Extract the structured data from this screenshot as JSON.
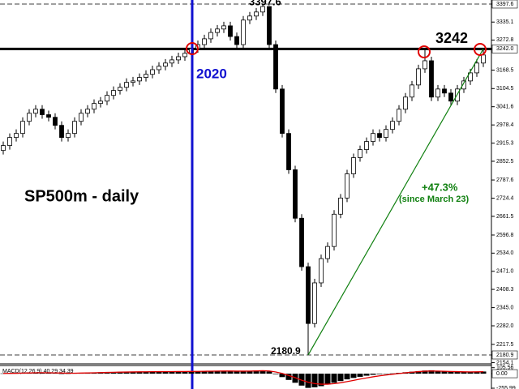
{
  "chart_data": {
    "type": "candlestick",
    "title": "SP500m - daily",
    "up_color": "#ffffff",
    "down_color": "#000000",
    "open": [
      2890,
      2907,
      2935,
      2949,
      2991,
      3019,
      3033,
      3014,
      3005,
      2977,
      2935,
      2949,
      2991,
      3019,
      3033,
      3053,
      3061,
      3081,
      3098,
      3109,
      3126,
      3131,
      3143,
      3154,
      3170,
      3182,
      3193,
      3204,
      3215,
      3227,
      3243,
      3257,
      3277,
      3299,
      3311,
      3322,
      3285,
      3257,
      3342,
      3356,
      3370,
      3389,
      3257,
      3103,
      2949,
      2823,
      2655,
      2487,
      2290,
      2431,
      2515,
      2557,
      2669,
      2725,
      2809,
      2865,
      2893,
      2921,
      2949,
      2935,
      2963,
      2991,
      3033,
      3075,
      3117,
      3173,
      3201,
      3075,
      3103,
      3089,
      3061,
      3103,
      3131,
      3159,
      3193
    ],
    "high": [
      2921,
      2949,
      2963,
      3005,
      3033,
      3047,
      3047,
      3028,
      3019,
      2991,
      2963,
      3005,
      3033,
      3047,
      3067,
      3075,
      3095,
      3112,
      3123,
      3140,
      3145,
      3157,
      3168,
      3184,
      3196,
      3207,
      3218,
      3229,
      3241,
      3257,
      3271,
      3291,
      3313,
      3325,
      3336,
      3336,
      3299,
      3356,
      3370,
      3384,
      3397.6,
      3390,
      3271,
      3117,
      2963,
      2837,
      2669,
      2501,
      2445,
      2529,
      2571,
      2683,
      2739,
      2823,
      2879,
      2907,
      2935,
      2963,
      2963,
      2977,
      3005,
      3047,
      3089,
      3131,
      3187,
      3242,
      3215,
      3117,
      3117,
      3103,
      3117,
      3145,
      3173,
      3207,
      3242
    ],
    "low": [
      2876,
      2893,
      2921,
      2935,
      2977,
      3005,
      3000,
      2991,
      2963,
      2921,
      2921,
      2935,
      2977,
      3005,
      3019,
      3039,
      3047,
      3067,
      3084,
      3095,
      3112,
      3117,
      3129,
      3140,
      3156,
      3168,
      3179,
      3190,
      3201,
      3213,
      3229,
      3243,
      3263,
      3285,
      3297,
      3271,
      3243,
      3243,
      3328,
      3342,
      3356,
      3243,
      3089,
      2935,
      2809,
      2641,
      2473,
      2180.9,
      2276,
      2417,
      2501,
      2543,
      2655,
      2711,
      2795,
      2851,
      2879,
      2907,
      2921,
      2921,
      2949,
      2977,
      3019,
      3061,
      3103,
      3159,
      3061,
      3061,
      3075,
      3047,
      3047,
      3089,
      3117,
      3145,
      3179
    ],
    "close": [
      2907,
      2935,
      2949,
      2991,
      3019,
      3033,
      3014,
      3005,
      2977,
      2935,
      2949,
      2991,
      3019,
      3033,
      3053,
      3061,
      3081,
      3098,
      3109,
      3126,
      3131,
      3143,
      3154,
      3170,
      3182,
      3193,
      3204,
      3215,
      3227,
      3243,
      3257,
      3277,
      3299,
      3311,
      3322,
      3285,
      3257,
      3342,
      3356,
      3370,
      3389,
      3257,
      3103,
      2949,
      2823,
      2655,
      2487,
      2290,
      2431,
      2515,
      2557,
      2669,
      2725,
      2809,
      2865,
      2893,
      2921,
      2949,
      2935,
      2963,
      2991,
      3033,
      3075,
      3117,
      3173,
      3201,
      3075,
      3103,
      3089,
      3061,
      3103,
      3131,
      3159,
      3193,
      3221
    ],
    "ylim": [
      2150,
      3411.6
    ],
    "yticks": [
      {
        "value": 3397.6,
        "label": "3397.6"
      },
      3335.1,
      3272.8,
      {
        "value": 3242,
        "label": "3242.0"
      },
      3168.5,
      3104.5,
      3041.6,
      2978.4,
      2915.3,
      2852.5,
      2787.6,
      2724.4,
      2661.5,
      2596.8,
      {
        "value": 2534,
        "label": "2534.0"
      },
      {
        "value": 2471,
        "label": "2471.0"
      },
      2408.3,
      {
        "value": 2345,
        "label": "2345.0"
      },
      {
        "value": 2282,
        "label": "2282.0"
      },
      2217.5,
      {
        "value": 2180.9,
        "label": "2180.9"
      },
      2154.1
    ],
    "level": 3242,
    "year_label": "2020",
    "gain_label": "+47.3%",
    "gain_note": "(since March 23)",
    "macd": {
      "label": "MACD(12,26,9) 40.29 34.39",
      "histogram": [
        5,
        8,
        12,
        15,
        20,
        22,
        18,
        14,
        8,
        2,
        4,
        10,
        15,
        18,
        22,
        25,
        28,
        30,
        32,
        34,
        35,
        36,
        36,
        37,
        38,
        38,
        39,
        40,
        40,
        42,
        44,
        46,
        48,
        50,
        50,
        45,
        40,
        45,
        50,
        55,
        58,
        40,
        -10,
        -60,
        -110,
        -160,
        -210,
        -250,
        -240,
        -220,
        -190,
        -160,
        -130,
        -100,
        -75,
        -55,
        -35,
        -20,
        -10,
        -2,
        5,
        15,
        25,
        35,
        45,
        55,
        60,
        50,
        45,
        38,
        30,
        28,
        30,
        34,
        38
      ],
      "signal": [
        5,
        6,
        8,
        10,
        13,
        16,
        17,
        16,
        14,
        11,
        9,
        9,
        11,
        13,
        16,
        19,
        22,
        25,
        27,
        29,
        31,
        33,
        34,
        35,
        36,
        37,
        37,
        38,
        39,
        40,
        41,
        43,
        44,
        46,
        47,
        47,
        45,
        45,
        46,
        49,
        52,
        48,
        30,
        5,
        -30,
        -70,
        -115,
        -150,
        -175,
        -185,
        -185,
        -175,
        -160,
        -140,
        -118,
        -95,
        -75,
        -55,
        -38,
        -24,
        -10,
        3,
        15,
        26,
        36,
        44,
        47,
        46,
        43,
        39,
        36,
        33,
        32,
        33,
        35
      ],
      "signal_color": "#e00000",
      "ylim": [
        -270,
        130
      ],
      "yticks": [
        {
          "value": 105.56,
          "label": "105.56"
        },
        {
          "value": 0,
          "label": "0.00"
        },
        {
          "value": -255.99,
          "label": "-255.99"
        }
      ]
    }
  }
}
